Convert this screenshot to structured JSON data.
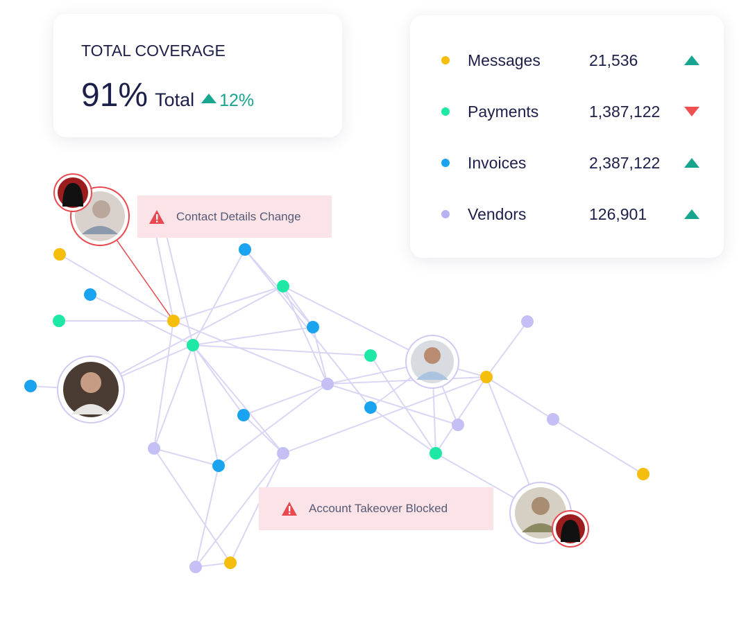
{
  "coverage": {
    "title": "TOTAL COVERAGE",
    "value": "91%",
    "label": "Total",
    "change": "12%",
    "trend": "up"
  },
  "legend": [
    {
      "name": "Messages",
      "value": "21,536",
      "color": "#f5bd0c",
      "trend": "up"
    },
    {
      "name": "Payments",
      "value": "1,387,122",
      "color": "#1ee8a6",
      "trend": "down"
    },
    {
      "name": "Invoices",
      "value": "2,387,122",
      "color": "#1aa3ef",
      "trend": "up"
    },
    {
      "name": "Vendors",
      "value": "126,901",
      "color": "#b8b2f2",
      "trend": "up"
    }
  ],
  "alerts": [
    "Contact Details Change",
    "Account Takeover Blocked"
  ]
}
